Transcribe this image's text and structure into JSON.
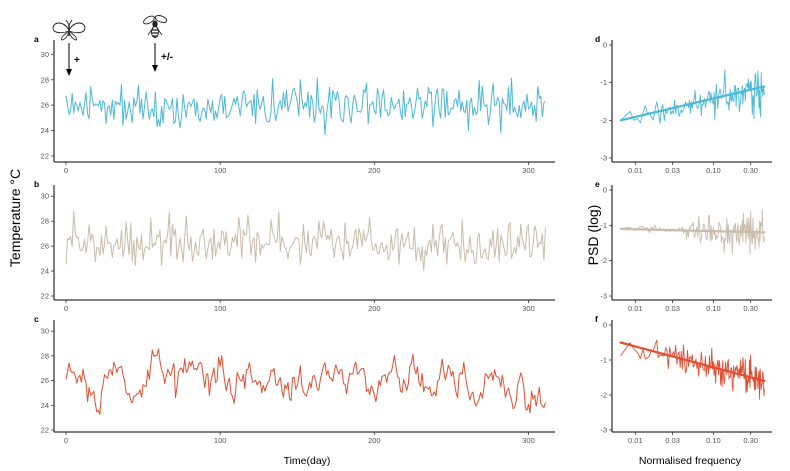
{
  "chart_data": {
    "type": "line",
    "ylabel_left": "Temperature °C",
    "xlabel_left": "Time(day)",
    "ylabel_right": "PSD (log)",
    "xlabel_right": "Normalised frequency",
    "colors": {
      "a": "#4db8d6",
      "b": "#c8bcaa",
      "c": "#e04e32"
    },
    "annotations": [
      {
        "icon": "butterfly-icon",
        "label": "+"
      },
      {
        "icon": "wasp-icon",
        "label": "+/-"
      }
    ],
    "time_panels": [
      {
        "letter": "a",
        "color_key": "a",
        "xlim": [
          0,
          312
        ],
        "ylim": [
          22,
          30.5
        ],
        "x_ticks": [
          0,
          100,
          200,
          300
        ],
        "y_ticks": [
          22,
          24,
          26,
          28,
          30
        ],
        "pattern": "white",
        "mean": 26,
        "sd": 1.4,
        "seed": 11
      },
      {
        "letter": "b",
        "color_key": "b",
        "xlim": [
          0,
          312
        ],
        "ylim": [
          22,
          30.5
        ],
        "x_ticks": [
          0,
          100,
          200,
          300
        ],
        "y_ticks": [
          22,
          24,
          26,
          28,
          30
        ],
        "pattern": "white",
        "mean": 26.3,
        "sd": 1.5,
        "seed": 23
      },
      {
        "letter": "c",
        "color_key": "c",
        "xlim": [
          0,
          312
        ],
        "ylim": [
          22,
          30.5
        ],
        "x_ticks": [
          0,
          100,
          200,
          300
        ],
        "y_ticks": [
          22,
          24,
          26,
          28,
          30
        ],
        "pattern": "red",
        "mean": 26,
        "sd": 1.6,
        "seed": 37
      }
    ],
    "psd_panels": [
      {
        "letter": "d",
        "color_key": "a",
        "x_range": [
          0.006,
          0.5
        ],
        "ylim": [
          -3,
          0
        ],
        "x_ticks": [
          0.01,
          0.03,
          0.1,
          0.3
        ],
        "x_tick_labels": [
          "0.01",
          "0.03",
          "0.10",
          "0.30"
        ],
        "y_ticks": [
          -3,
          -2,
          -1,
          0
        ],
        "fit": {
          "slope": 0.2,
          "start": -2.0,
          "end": -1.1
        },
        "noise": "blue",
        "seed": 5
      },
      {
        "letter": "e",
        "color_key": "b",
        "x_range": [
          0.006,
          0.5
        ],
        "ylim": [
          -3,
          0
        ],
        "x_ticks": [
          0.01,
          0.03,
          0.1,
          0.3
        ],
        "x_tick_labels": [
          "0.01",
          "0.03",
          "0.10",
          "0.30"
        ],
        "y_ticks": [
          -3,
          -2,
          -1,
          0
        ],
        "fit": {
          "slope": 0,
          "start": -1.1,
          "end": -1.2
        },
        "noise": "white",
        "seed": 9
      },
      {
        "letter": "f",
        "color_key": "c",
        "x_range": [
          0.006,
          0.5
        ],
        "ylim": [
          -3,
          0
        ],
        "x_ticks": [
          0.01,
          0.03,
          0.1,
          0.3
        ],
        "x_tick_labels": [
          "0.01",
          "0.03",
          "0.10",
          "0.30"
        ],
        "y_ticks": [
          -3,
          -2,
          -1,
          0
        ],
        "fit": {
          "slope": -0.2,
          "start": -0.5,
          "end": -1.6
        },
        "noise": "red",
        "seed": 13
      }
    ]
  }
}
